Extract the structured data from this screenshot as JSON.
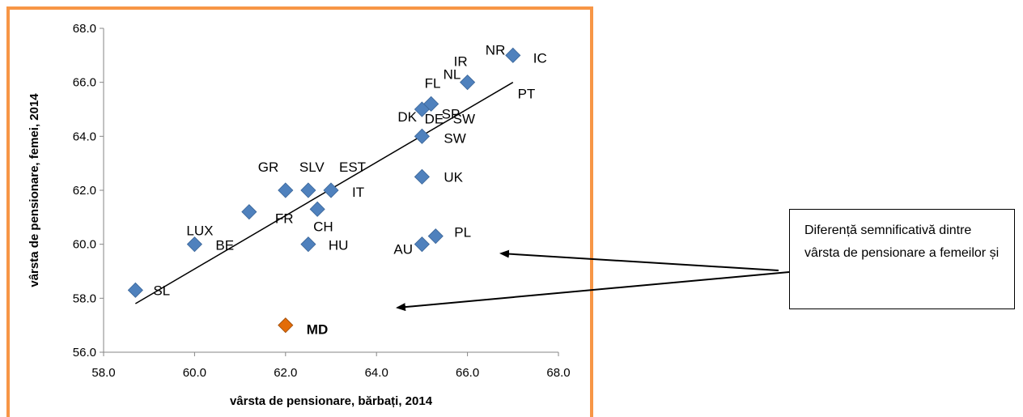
{
  "chart_data": {
    "type": "scatter",
    "xlabel": "vârsta de pensionare, bărbați, 2014",
    "ylabel": "vârsta de pensionare, femei, 2014",
    "xlim": [
      58.0,
      68.0
    ],
    "ylim": [
      56.0,
      68.0
    ],
    "x_ticks": [
      "58.0",
      "60.0",
      "62.0",
      "64.0",
      "66.0",
      "68.0"
    ],
    "y_ticks": [
      "56.0",
      "58.0",
      "60.0",
      "62.0",
      "64.0",
      "66.0",
      "68.0"
    ],
    "grid": false,
    "trendline": {
      "x": [
        58.7,
        67.0
      ],
      "y": [
        57.8,
        66.0
      ]
    },
    "points": [
      {
        "label": "SL",
        "x": 58.7,
        "y": 58.3
      },
      {
        "label": "LUX",
        "x": 60.0,
        "y": 60.0
      },
      {
        "label": "BE",
        "x": 60.0,
        "y": 60.0
      },
      {
        "label": "FR",
        "x": 61.2,
        "y": 61.2
      },
      {
        "label": "GR",
        "x": 62.0,
        "y": 62.0
      },
      {
        "label": "SLV",
        "x": 62.5,
        "y": 62.0
      },
      {
        "label": "CH",
        "x": 62.7,
        "y": 61.3
      },
      {
        "label": "EST",
        "x": 63.0,
        "y": 62.0
      },
      {
        "label": "IT",
        "x": 63.0,
        "y": 62.0
      },
      {
        "label": "HU",
        "x": 62.5,
        "y": 60.0
      },
      {
        "label": "MD",
        "x": 62.0,
        "y": 57.0,
        "highlight": true
      },
      {
        "label": "AU",
        "x": 65.0,
        "y": 60.0
      },
      {
        "label": "PL",
        "x": 65.3,
        "y": 60.3
      },
      {
        "label": "UK",
        "x": 65.0,
        "y": 62.5
      },
      {
        "label": "SW",
        "x": 65.0,
        "y": 64.0
      },
      {
        "label": "DK",
        "x": 65.0,
        "y": 65.0
      },
      {
        "label": "FL",
        "x": 65.2,
        "y": 65.2
      },
      {
        "label": "DE",
        "x": 65.2,
        "y": 65.2
      },
      {
        "label": "SP",
        "x": 65.2,
        "y": 65.2
      },
      {
        "label": "SW",
        "x": 65.2,
        "y": 65.2
      },
      {
        "label": "NL",
        "x": 66.0,
        "y": 66.0
      },
      {
        "label": "IR",
        "x": 66.0,
        "y": 66.0
      },
      {
        "label": "PT",
        "x": 66.0,
        "y": 66.0
      },
      {
        "label": "NR",
        "x": 67.0,
        "y": 67.0
      },
      {
        "label": "IC",
        "x": 67.0,
        "y": 67.0
      }
    ],
    "colors": {
      "marker": "#4f81bd",
      "highlight": "#e36c09",
      "highlight_label": "#e36c09",
      "frame": "#f79646"
    }
  },
  "annotation": {
    "text": "Diferență semnificativă dintre vârsta de pensionare a femeilor și"
  }
}
